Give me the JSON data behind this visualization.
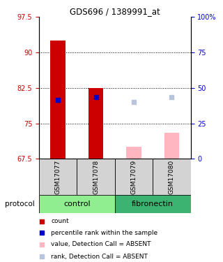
{
  "title": "GDS696 / 1389991_at",
  "samples": [
    "GSM17077",
    "GSM17078",
    "GSM17079",
    "GSM17080"
  ],
  "groups": [
    {
      "name": "control",
      "color": "#90EE90",
      "start": 0,
      "end": 2
    },
    {
      "name": "fibronectin",
      "color": "#3CB371",
      "start": 2,
      "end": 4
    }
  ],
  "ylim_left": [
    67.5,
    97.5
  ],
  "yticks_left": [
    67.5,
    75.0,
    82.5,
    90.0,
    97.5
  ],
  "ytick_labels_left": [
    "67.5",
    "75",
    "82.5",
    "90",
    "97.5"
  ],
  "yticks_right": [
    0,
    25,
    50,
    75,
    100
  ],
  "ytick_labels_right": [
    "0",
    "25",
    "50",
    "75",
    "100%"
  ],
  "ylim_right": [
    0,
    100
  ],
  "bars": {
    "GSM17077": {
      "value": 92.5,
      "rank": 80.0,
      "absent_value": null,
      "absent_rank": null
    },
    "GSM17078": {
      "value": 82.5,
      "rank": 80.5,
      "absent_value": null,
      "absent_rank": null
    },
    "GSM17079": {
      "value": 70.0,
      "rank": null,
      "absent_value": 70.0,
      "absent_rank": 79.5
    },
    "GSM17080": {
      "value": null,
      "rank": null,
      "absent_value": 73.0,
      "absent_rank": 80.5
    }
  },
  "bar_width": 0.4,
  "rank_marker_size": 25,
  "gridlines": [
    75.0,
    82.5,
    90.0
  ],
  "colors": {
    "bar_present": "#CC0000",
    "bar_absent": "#FFB6C1",
    "rank_present": "#0000CC",
    "rank_absent": "#B8C4DC",
    "left_tick": "#CC0000",
    "right_tick": "#0000CC",
    "sample_box": "#D3D3D3",
    "group_control": "#90EE90",
    "group_fibronectin": "#3CB371"
  },
  "legend_items": [
    {
      "label": "count",
      "color": "#CC0000"
    },
    {
      "label": "percentile rank within the sample",
      "color": "#0000CC"
    },
    {
      "label": "value, Detection Call = ABSENT",
      "color": "#FFB6C1"
    },
    {
      "label": "rank, Detection Call = ABSENT",
      "color": "#B8C4DC"
    }
  ],
  "title_fontsize": 8.5,
  "tick_fontsize": 7,
  "sample_label_fontsize": 6.5,
  "group_label_fontsize": 8,
  "legend_fontsize": 6.5
}
